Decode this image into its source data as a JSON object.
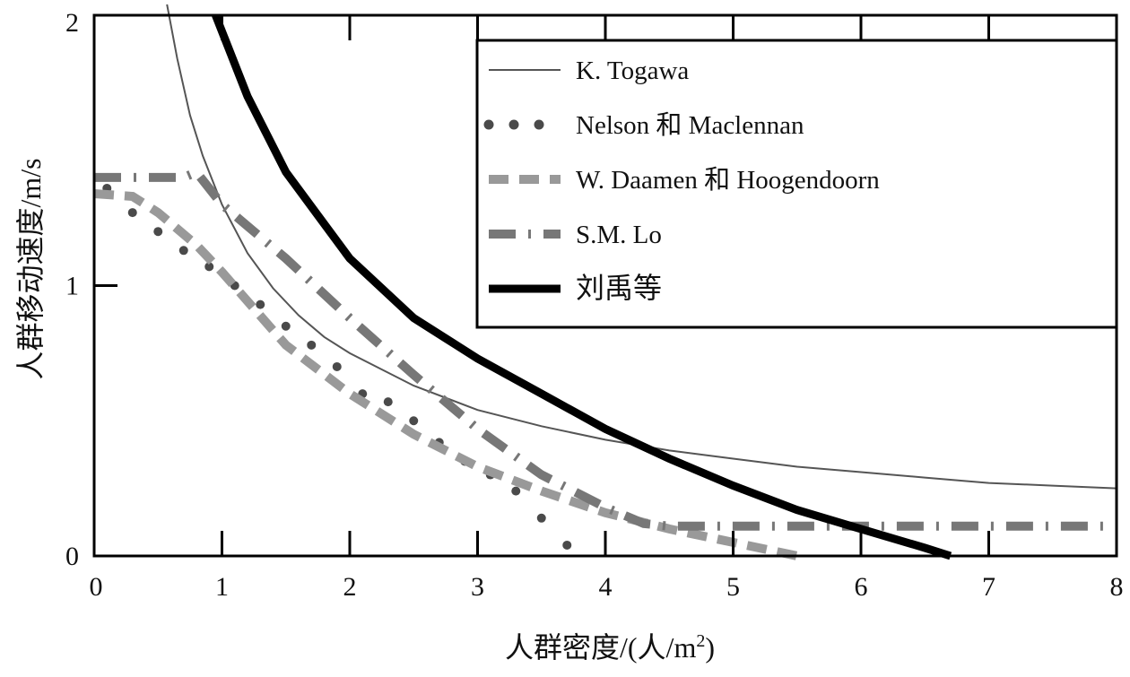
{
  "chart_data": {
    "type": "line",
    "title": "",
    "xlabel": "人群密度/(人/m²)",
    "xlabel_main": "人群密度/(人/m",
    "xlabel_sup": "2",
    "xlabel_close": ")",
    "ylabel": "人群移动速度/m/s",
    "xlim": [
      0,
      8
    ],
    "ylim": [
      0,
      2
    ],
    "xticks": [
      "0",
      "1",
      "2",
      "3",
      "4",
      "5",
      "6",
      "7",
      "8"
    ],
    "yticks": [
      "0",
      "1",
      "2"
    ],
    "grid": false,
    "legend_position": "top-right",
    "colors": {
      "togawa": "#555555",
      "nelson": "#4a4a4a",
      "daamen": "#999999",
      "lo": "#777777",
      "liu": "#000000"
    },
    "series": [
      {
        "name": "K. Togawa",
        "style": "solid-thin",
        "x": [
          0.57,
          0.65,
          0.75,
          0.85,
          1,
          1.2,
          1.4,
          1.6,
          1.8,
          2,
          2.5,
          3,
          3.5,
          4,
          4.5,
          5,
          5.5,
          6,
          6.5,
          7,
          7.5,
          8
        ],
        "y": [
          2.04,
          1.84,
          1.63,
          1.48,
          1.3,
          1.12,
          0.99,
          0.89,
          0.81,
          0.75,
          0.63,
          0.54,
          0.48,
          0.43,
          0.39,
          0.36,
          0.33,
          0.31,
          0.29,
          0.27,
          0.26,
          0.25
        ]
      },
      {
        "name": "Nelson 和 Maclennan",
        "style": "dots",
        "x": [
          0.1,
          0.3,
          0.5,
          0.7,
          0.9,
          1.1,
          1.3,
          1.5,
          1.7,
          1.9,
          2.1,
          2.3,
          2.5,
          2.7,
          2.9,
          3.1,
          3.3,
          3.5,
          3.7
        ],
        "y": [
          1.36,
          1.27,
          1.2,
          1.13,
          1.07,
          1.0,
          0.93,
          0.85,
          0.78,
          0.7,
          0.6,
          0.57,
          0.5,
          0.42,
          0.35,
          0.3,
          0.24,
          0.14,
          0.04
        ]
      },
      {
        "name": "W. Daamen 和 Hoogendoorn",
        "style": "dashed",
        "x": [
          0,
          0.3,
          0.5,
          0.8,
          1,
          1.5,
          2,
          2.5,
          3,
          3.5,
          4,
          4.5,
          5,
          5.5
        ],
        "y": [
          1.34,
          1.33,
          1.27,
          1.15,
          1.05,
          0.78,
          0.6,
          0.45,
          0.33,
          0.24,
          0.16,
          0.1,
          0.05,
          0
        ]
      },
      {
        "name": "S.M. Lo",
        "style": "dash-dot",
        "x": [
          0,
          0.7,
          0.8,
          1,
          1.5,
          2,
          2.5,
          3,
          3.5,
          4,
          4.3,
          4.5,
          8
        ],
        "y": [
          1.4,
          1.4,
          1.42,
          1.3,
          1.1,
          0.88,
          0.67,
          0.47,
          0.3,
          0.18,
          0.12,
          0.11,
          0.11
        ]
      },
      {
        "name": "刘禹等",
        "style": "solid-thick",
        "x": [
          0.95,
          1.2,
          1.5,
          2,
          2.5,
          3,
          3.5,
          4,
          4.5,
          5,
          5.5,
          6,
          6.5,
          6.7
        ],
        "y": [
          2.0,
          1.7,
          1.42,
          1.1,
          0.88,
          0.73,
          0.6,
          0.47,
          0.36,
          0.26,
          0.17,
          0.1,
          0.03,
          0
        ]
      }
    ]
  }
}
